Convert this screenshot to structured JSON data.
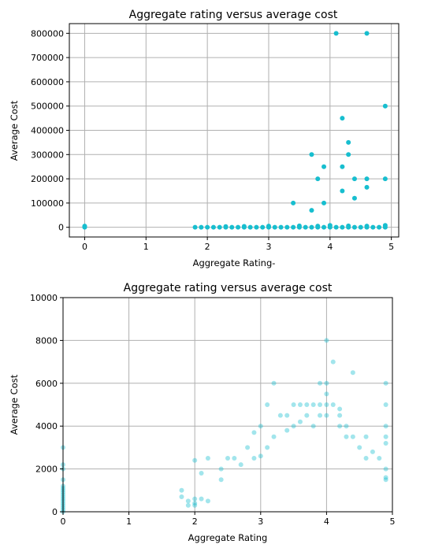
{
  "colors": {
    "point": "#17becf",
    "grid": "#b0b0b0"
  },
  "chart_data": [
    {
      "type": "scatter",
      "title": "Aggregate rating versus average cost",
      "xlabel": "Aggregate Rating-",
      "ylabel": "Average Cost",
      "xlim": [
        -0.25,
        5.12
      ],
      "ylim": [
        -40000,
        840000
      ],
      "xticks": [
        0,
        1,
        2,
        3,
        4,
        5
      ],
      "yticks": [
        0,
        100000,
        200000,
        300000,
        400000,
        500000,
        600000,
        700000,
        800000
      ],
      "grid": true,
      "point_alpha": 1.0,
      "series": [
        {
          "points": [
            [
              0,
              0
            ],
            [
              0,
              5000
            ],
            [
              1.8,
              0
            ],
            [
              1.9,
              0
            ],
            [
              2.0,
              0
            ],
            [
              2.1,
              0
            ],
            [
              2.2,
              0
            ],
            [
              2.3,
              0
            ],
            [
              2.4,
              0
            ],
            [
              2.5,
              0
            ],
            [
              2.6,
              0
            ],
            [
              2.7,
              0
            ],
            [
              2.8,
              0
            ],
            [
              2.9,
              0
            ],
            [
              3.0,
              0
            ],
            [
              3.1,
              0
            ],
            [
              3.2,
              0
            ],
            [
              3.3,
              0
            ],
            [
              3.4,
              0
            ],
            [
              3.5,
              0
            ],
            [
              3.6,
              0
            ],
            [
              3.7,
              0
            ],
            [
              3.8,
              0
            ],
            [
              3.9,
              0
            ],
            [
              4.0,
              0
            ],
            [
              4.1,
              0
            ],
            [
              4.2,
              0
            ],
            [
              4.3,
              0
            ],
            [
              4.4,
              0
            ],
            [
              4.5,
              0
            ],
            [
              4.6,
              0
            ],
            [
              4.7,
              0
            ],
            [
              4.8,
              0
            ],
            [
              4.9,
              0
            ],
            [
              2.3,
              3000
            ],
            [
              2.6,
              4000
            ],
            [
              3.0,
              5000
            ],
            [
              3.5,
              6000
            ],
            [
              3.8,
              5000
            ],
            [
              4.0,
              8000
            ],
            [
              4.3,
              6000
            ],
            [
              4.6,
              5000
            ],
            [
              4.9,
              8000
            ],
            [
              3.4,
              100000
            ],
            [
              3.7,
              70000
            ],
            [
              3.7,
              300000
            ],
            [
              3.8,
              200000
            ],
            [
              3.9,
              250000
            ],
            [
              3.9,
              100000
            ],
            [
              4.1,
              800000
            ],
            [
              4.2,
              450000
            ],
            [
              4.2,
              250000
            ],
            [
              4.2,
              150000
            ],
            [
              4.3,
              350000
            ],
            [
              4.3,
              300000
            ],
            [
              4.4,
              200000
            ],
            [
              4.4,
              120000
            ],
            [
              4.6,
              800000
            ],
            [
              4.6,
              200000
            ],
            [
              4.6,
              165000
            ],
            [
              4.9,
              500000
            ],
            [
              4.9,
              200000
            ]
          ]
        }
      ]
    },
    {
      "type": "scatter",
      "title": "Aggregate rating versus average cost",
      "xlabel": "Aggregate Rating",
      "ylabel": "Average Cost",
      "xlim": [
        0,
        5
      ],
      "ylim": [
        0,
        10000
      ],
      "xticks": [
        0,
        1,
        2,
        3,
        4,
        5
      ],
      "yticks": [
        0,
        2000,
        4000,
        6000,
        8000,
        10000
      ],
      "grid": true,
      "point_alpha": 0.4,
      "series": [
        {
          "points": [
            [
              0,
              0
            ],
            [
              0,
              100
            ],
            [
              0,
              200
            ],
            [
              0,
              300
            ],
            [
              0,
              400
            ],
            [
              0,
              500
            ],
            [
              0,
              600
            ],
            [
              0,
              700
            ],
            [
              0,
              800
            ],
            [
              0,
              900
            ],
            [
              0,
              1000
            ],
            [
              0,
              1100
            ],
            [
              0,
              1200
            ],
            [
              0,
              1500
            ],
            [
              0,
              2000
            ],
            [
              0,
              2200
            ],
            [
              0,
              3000
            ],
            [
              1.8,
              1000
            ],
            [
              1.8,
              700
            ],
            [
              1.9,
              300
            ],
            [
              1.9,
              500
            ],
            [
              2.0,
              2400
            ],
            [
              2.0,
              600
            ],
            [
              2.0,
              400
            ],
            [
              2.0,
              300
            ],
            [
              2.1,
              1800
            ],
            [
              2.1,
              600
            ],
            [
              2.2,
              2500
            ],
            [
              2.2,
              500
            ],
            [
              2.4,
              2000
            ],
            [
              2.4,
              1500
            ],
            [
              2.5,
              2500
            ],
            [
              2.6,
              2500
            ],
            [
              2.7,
              2200
            ],
            [
              2.8,
              3000
            ],
            [
              2.9,
              3700
            ],
            [
              2.9,
              2500
            ],
            [
              3.0,
              2600
            ],
            [
              3.0,
              4000
            ],
            [
              3.1,
              3000
            ],
            [
              3.1,
              5000
            ],
            [
              3.2,
              6000
            ],
            [
              3.2,
              3500
            ],
            [
              3.3,
              4500
            ],
            [
              3.4,
              4500
            ],
            [
              3.4,
              3800
            ],
            [
              3.5,
              5000
            ],
            [
              3.5,
              4000
            ],
            [
              3.6,
              5000
            ],
            [
              3.6,
              4200
            ],
            [
              3.7,
              5000
            ],
            [
              3.7,
              4500
            ],
            [
              3.8,
              5000
            ],
            [
              3.8,
              4000
            ],
            [
              3.9,
              6000
            ],
            [
              3.9,
              5000
            ],
            [
              3.9,
              4500
            ],
            [
              4.0,
              8000
            ],
            [
              4.0,
              6000
            ],
            [
              4.0,
              5500
            ],
            [
              4.0,
              5000
            ],
            [
              4.0,
              4500
            ],
            [
              4.1,
              7000
            ],
            [
              4.1,
              5000
            ],
            [
              4.2,
              4800
            ],
            [
              4.2,
              4500
            ],
            [
              4.2,
              4000
            ],
            [
              4.3,
              4000
            ],
            [
              4.3,
              3500
            ],
            [
              4.4,
              6500
            ],
            [
              4.4,
              3500
            ],
            [
              4.5,
              3000
            ],
            [
              4.6,
              3500
            ],
            [
              4.6,
              2500
            ],
            [
              4.7,
              2800
            ],
            [
              4.8,
              2500
            ],
            [
              4.9,
              6000
            ],
            [
              4.9,
              5000
            ],
            [
              4.9,
              4000
            ],
            [
              4.9,
              3500
            ],
            [
              4.9,
              3200
            ],
            [
              4.9,
              2000
            ],
            [
              4.9,
              1600
            ],
            [
              4.9,
              1500
            ]
          ]
        }
      ]
    }
  ]
}
